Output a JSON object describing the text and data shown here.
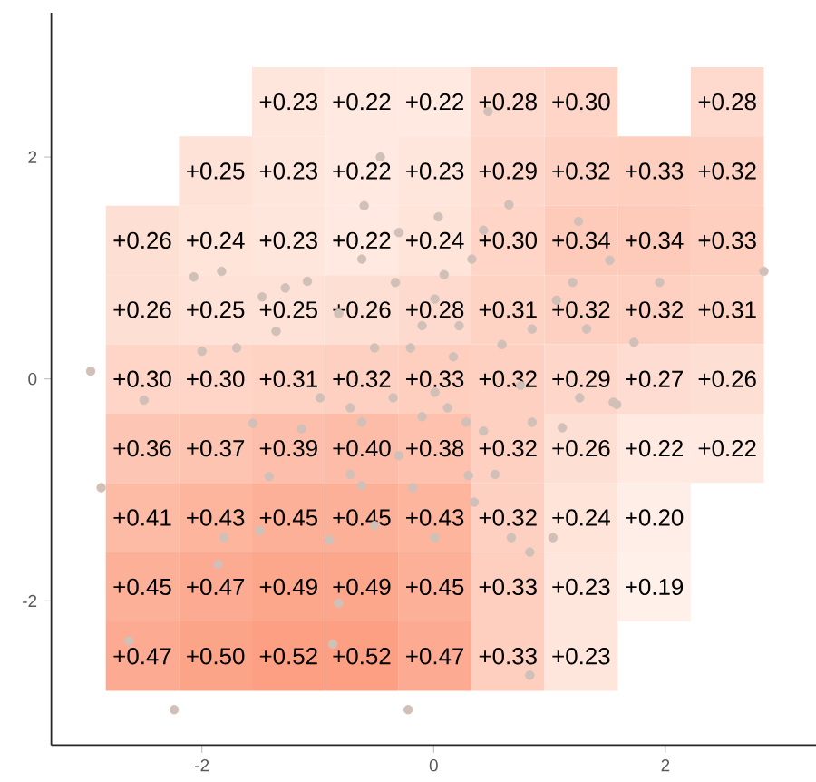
{
  "chart_data": [
    {
      "type": "heatmap",
      "categories": [
        null,
        null,
        null,
        null,
        null,
        null,
        null,
        null,
        null
      ],
      "y_categories": [
        null,
        null,
        null,
        null,
        null,
        null,
        null,
        null,
        null
      ],
      "cells": [
        [
          null,
          null,
          0.23,
          0.22,
          0.22,
          0.28,
          0.3,
          null,
          0.28
        ],
        [
          null,
          0.25,
          0.23,
          0.22,
          0.23,
          0.29,
          0.32,
          0.33,
          0.32
        ],
        [
          0.26,
          0.24,
          0.23,
          0.22,
          0.24,
          0.3,
          0.34,
          0.34,
          0.33
        ],
        [
          0.26,
          0.25,
          0.25,
          0.26,
          0.28,
          0.31,
          0.32,
          0.32,
          0.31
        ],
        [
          0.3,
          0.3,
          0.31,
          0.32,
          0.33,
          0.32,
          0.29,
          0.27,
          0.26
        ],
        [
          0.36,
          0.37,
          0.39,
          0.4,
          0.38,
          0.32,
          0.26,
          0.22,
          0.22
        ],
        [
          0.41,
          0.43,
          0.45,
          0.45,
          0.43,
          0.32,
          0.24,
          0.2,
          null
        ],
        [
          0.45,
          0.47,
          0.49,
          0.49,
          0.45,
          0.33,
          0.23,
          0.19,
          null
        ],
        [
          0.47,
          0.5,
          0.52,
          0.52,
          0.47,
          0.33,
          0.23,
          null,
          null
        ]
      ],
      "cell_labels": [
        [
          null,
          null,
          "+0.23",
          "+0.22",
          "+0.22",
          "+0.28",
          "+0.30",
          null,
          "+0.28"
        ],
        [
          null,
          "+0.25",
          "+0.23",
          "+0.22",
          "+0.23",
          "+0.29",
          "+0.32",
          "+0.33",
          "+0.32"
        ],
        [
          "+0.26",
          "+0.24",
          "+0.23",
          "+0.22",
          "+0.24",
          "+0.30",
          "+0.34",
          "+0.34",
          "+0.33"
        ],
        [
          "+0.26",
          "+0.25",
          "+0.25",
          "+0.26",
          "+0.28",
          "+0.31",
          "+0.32",
          "+0.32",
          "+0.31"
        ],
        [
          "+0.30",
          "+0.30",
          "+0.31",
          "+0.32",
          "+0.33",
          "+0.32",
          "+0.29",
          "+0.27",
          "+0.26"
        ],
        [
          "+0.36",
          "+0.37",
          "+0.39",
          "+0.40",
          "+0.38",
          "+0.32",
          "+0.26",
          "+0.22",
          "+0.22"
        ],
        [
          "+0.41",
          "+0.43",
          "+0.45",
          "+0.45",
          "+0.43",
          "+0.32",
          "+0.24",
          "+0.20",
          null
        ],
        [
          "+0.45",
          "+0.47",
          "+0.49",
          "+0.49",
          "+0.45",
          "+0.33",
          "+0.23",
          "+0.19",
          null
        ],
        [
          "+0.47",
          "+0.50",
          "+0.52",
          "+0.52",
          "+0.47",
          "+0.33",
          "+0.23",
          null,
          null
        ]
      ]
    },
    {
      "type": "scatter",
      "xlim": [
        -3.3,
        3.3
      ],
      "ylim": [
        -3.3,
        3.3
      ],
      "xticks": [
        -2,
        0,
        2
      ],
      "yticks": [
        -2,
        0,
        2
      ],
      "marker": "circle",
      "series": [
        {
          "color": "#d0c0b8",
          "x": [
            -2.96,
            2.85,
            -0.46,
            0.47,
            -0.6,
            0.65,
            1.25,
            1.52,
            -2.07,
            -1.83,
            -1.48,
            -1.28,
            1.95,
            1.73,
            1.2,
            1.06,
            -2.0,
            -1.7,
            -1.36,
            -0.33,
            0.01,
            0.09,
            0.33,
            0.43,
            0.04,
            -0.3,
            -1.09,
            -0.62,
            0.22,
            -0.1,
            -0.2,
            0.17,
            0.59,
            0.85,
            -0.51,
            -0.82,
            1.32,
            -2.5,
            -2.87,
            -2.24,
            -0.22,
            -2.63,
            -0.87,
            -0.82,
            -1.86,
            -1.81,
            -1.5,
            -1.42,
            -0.9,
            -0.51,
            0.01,
            0.35,
            0.67,
            0.83,
            0.83,
            1.03,
            1.11,
            1.58,
            1.26,
            0.53,
            0.3,
            -0.18,
            -0.3,
            -0.62,
            -0.72,
            -1.14,
            -1.56,
            -0.62,
            -0.1,
            0.12,
            0.28,
            0.43,
            0.85,
            0.75,
            -0.72,
            -0.35,
            0.01,
            1.55,
            -0.98
          ],
          "values": [
            0.07,
            0.97,
            2.0,
            2.41,
            1.56,
            1.57,
            1.42,
            1.07,
            0.92,
            0.97,
            0.74,
            0.82,
            0.87,
            0.33,
            0.87,
            0.71,
            0.25,
            0.28,
            0.43,
            0.87,
            0.72,
            0.94,
            1.08,
            1.34,
            1.46,
            1.32,
            0.88,
            1.08,
            0.48,
            0.48,
            0.28,
            0.2,
            0.31,
            0.45,
            0.28,
            0.59,
            0.45,
            -0.19,
            -0.98,
            -2.98,
            -2.98,
            -2.36,
            -2.39,
            -2.02,
            -1.67,
            -1.43,
            -1.37,
            -0.88,
            -1.45,
            -1.32,
            -1.43,
            -1.11,
            -1.43,
            -1.56,
            -2.67,
            -1.43,
            -0.44,
            -0.23,
            -0.17,
            -0.86,
            -0.87,
            -0.98,
            -0.69,
            -0.96,
            -0.86,
            -0.45,
            -0.4,
            -0.39,
            -0.34,
            -0.26,
            -0.39,
            -0.47,
            -0.39,
            -0.06,
            -0.26,
            -0.17,
            -0.12,
            -0.21,
            -0.17
          ]
        }
      ]
    }
  ]
}
